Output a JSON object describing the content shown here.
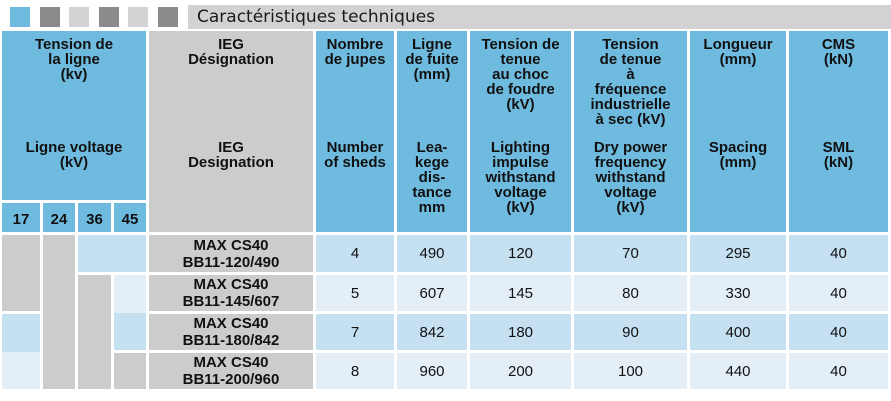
{
  "title_bar": {
    "title": "Caractéristiques techniques",
    "squares": [
      "blue",
      "dark-gray",
      "light-gray",
      "dark-gray",
      "light-gray",
      "dark-gray"
    ]
  },
  "colors": {
    "header_blue": "#6fbbe0",
    "row_stripe_blue": "#c5e0f1",
    "row_stripe_light": "#e3eef7",
    "gray_cell": "#cccccc",
    "title_bar_gray": "#d2d2d2"
  },
  "header": {
    "columns": [
      {
        "fr": "Tension de\nla ligne\n(kv)",
        "en": "Ligne voltage\n(kV)"
      },
      {
        "fr": "IEG\nDésignation",
        "en": "IEG\nDesignation"
      },
      {
        "fr": "Nombre\nde jupes",
        "en": "Number\nof sheds"
      },
      {
        "fr": "Ligne\nde fuite\n(mm)",
        "en": "Lea-\nkege\ndis-\ntance\nmm"
      },
      {
        "fr": "Tension de\ntenue\nau choc\nde foudre\n(kV)",
        "en": "Lighting\nimpulse\nwithstand\nvoltage\n(kV)"
      },
      {
        "fr": "Tension\nde tenue\nà\nfréquence\nindustrielle\nà sec (kV)",
        "en": "Dry power\nfrequency\nwithstand\nvoltage\n(kV)"
      },
      {
        "fr": "Longueur\n(mm)",
        "en": "Spacing\n(mm)"
      },
      {
        "fr": "CMS\n(kN)",
        "en": "SML\n(kN)"
      }
    ],
    "line_voltage_values": [
      "17",
      "24",
      "36",
      "45"
    ]
  },
  "rows": [
    {
      "designation": "MAX CS40\nBB11-120/490",
      "number_of_sheds": "4",
      "leakage_distance_mm": "490",
      "lightning_impulse_kv": "120",
      "dry_power_frequency_kv": "70",
      "spacing_mm": "295",
      "sml_kn": "40",
      "line_voltages_kv": [
        17,
        24
      ]
    },
    {
      "designation": "MAX CS40\nBB11-145/607",
      "number_of_sheds": "5",
      "leakage_distance_mm": "607",
      "lightning_impulse_kv": "145",
      "dry_power_frequency_kv": "80",
      "spacing_mm": "330",
      "sml_kn": "40",
      "line_voltages_kv": [
        17,
        24,
        36
      ]
    },
    {
      "designation": "MAX CS40\nBB11-180/842",
      "number_of_sheds": "7",
      "leakage_distance_mm": "842",
      "lightning_impulse_kv": "180",
      "dry_power_frequency_kv": "90",
      "spacing_mm": "400",
      "sml_kn": "40",
      "line_voltages_kv": [
        24,
        36
      ]
    },
    {
      "designation": "MAX CS40\nBB11-200/960",
      "number_of_sheds": "8",
      "leakage_distance_mm": "960",
      "lightning_impulse_kv": "200",
      "dry_power_frequency_kv": "100",
      "spacing_mm": "440",
      "sml_kn": "40",
      "line_voltages_kv": [
        24,
        36,
        45
      ]
    }
  ]
}
